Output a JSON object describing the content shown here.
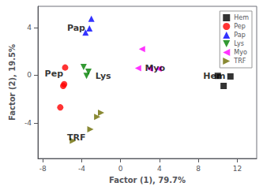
{
  "chart_data": {
    "type": "scatter",
    "xlabel": "Factor (1), 79.7%",
    "ylabel": "Factor (2), 19.5%",
    "xlim": [
      -8.5,
      14
    ],
    "ylim": [
      -7,
      5.8
    ],
    "xticks": [
      -8,
      -4,
      0,
      4,
      8,
      12
    ],
    "yticks": [
      -4,
      0,
      4
    ],
    "grid": false,
    "legend": "upper right",
    "series": [
      {
        "name": "Hem",
        "color": "#000000",
        "marker": "square",
        "x": [
          10.0,
          11.3,
          10.6
        ],
        "values": [
          -0.05,
          -0.1,
          -0.9
        ]
      },
      {
        "name": "Pep",
        "color": "#ff0000",
        "marker": "circle",
        "x": [
          -5.7,
          -5.8,
          -5.9,
          -6.2
        ],
        "values": [
          0.65,
          -0.75,
          -0.9,
          -2.7
        ]
      },
      {
        "name": "Pap",
        "color": "#0000ff",
        "marker": "triangle-up",
        "x": [
          -3.0,
          -3.2,
          -3.6
        ],
        "values": [
          4.75,
          3.95,
          3.6
        ]
      },
      {
        "name": "Lys",
        "color": "#008000",
        "marker": "triangle-down",
        "x": [
          -3.8,
          -3.3,
          -3.5
        ],
        "values": [
          0.7,
          0.3,
          -0.05
        ]
      },
      {
        "name": "Myo",
        "color": "#ff00ff",
        "marker": "triangle-left",
        "x": [
          1.8,
          3.0,
          3.9,
          2.2
        ],
        "values": [
          0.6,
          0.55,
          0.55,
          2.2
        ]
      },
      {
        "name": "TRF",
        "color": "#6b6b00",
        "marker": "triangle-right",
        "x": [
          -4.9,
          -3.1,
          -2.4,
          -2.0
        ],
        "values": [
          -5.5,
          -4.55,
          -3.5,
          -3.15
        ]
      }
    ],
    "annotations": [
      {
        "text": "Hem",
        "x": 8.5,
        "y": -0.05
      },
      {
        "text": "Pep",
        "x": -7.8,
        "y": 0.1
      },
      {
        "text": "Pap",
        "x": -5.5,
        "y": 4.0
      },
      {
        "text": "Lys",
        "x": -2.6,
        "y": -0.1
      },
      {
        "text": "Myo",
        "x": 2.5,
        "y": 0.6
      },
      {
        "text": "TRF",
        "x": -5.5,
        "y": -5.25
      }
    ]
  }
}
